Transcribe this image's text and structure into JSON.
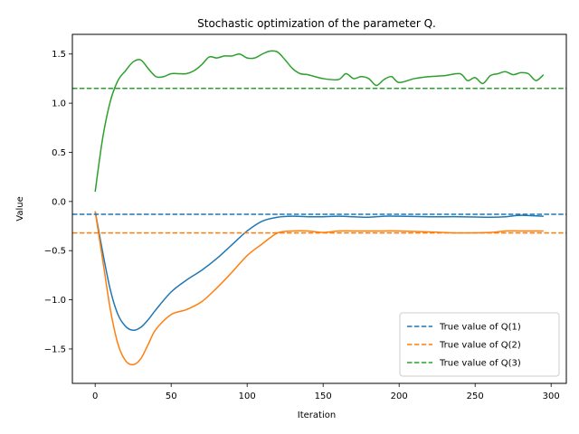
{
  "chart_data": {
    "type": "line",
    "title": "Stochastic optimization of the parameter Q.",
    "xlabel": "Iteration",
    "ylabel": "Value",
    "xlim": [
      -15,
      310
    ],
    "ylim": [
      -1.85,
      1.7
    ],
    "xticks": [
      0,
      50,
      100,
      150,
      200,
      250,
      300
    ],
    "yticks": [
      -1.5,
      -1.0,
      -0.5,
      0.0,
      0.5,
      1.0,
      1.5
    ],
    "grid": false,
    "legend_position": "lower-right",
    "series": [
      {
        "name": "",
        "color": "#1f77b4",
        "style": "solid",
        "x": [
          0,
          5,
          10,
          15,
          20,
          25,
          30,
          35,
          40,
          50,
          60,
          70,
          80,
          90,
          100,
          110,
          120,
          130,
          140,
          150,
          160,
          170,
          180,
          190,
          200,
          220,
          240,
          260,
          270,
          280,
          295
        ],
        "y": [
          -0.1,
          -0.52,
          -0.9,
          -1.15,
          -1.27,
          -1.31,
          -1.28,
          -1.2,
          -1.1,
          -0.92,
          -0.8,
          -0.7,
          -0.58,
          -0.44,
          -0.3,
          -0.2,
          -0.16,
          -0.15,
          -0.155,
          -0.155,
          -0.15,
          -0.155,
          -0.16,
          -0.15,
          -0.15,
          -0.155,
          -0.155,
          -0.16,
          -0.155,
          -0.14,
          -0.15
        ]
      },
      {
        "name": "",
        "color": "#ff7f0e",
        "style": "solid",
        "x": [
          0,
          5,
          10,
          15,
          20,
          25,
          30,
          35,
          40,
          50,
          60,
          70,
          80,
          90,
          100,
          110,
          120,
          130,
          140,
          150,
          160,
          170,
          180,
          190,
          200,
          220,
          240,
          260,
          270,
          280,
          295
        ],
        "y": [
          -0.1,
          -0.6,
          -1.1,
          -1.45,
          -1.62,
          -1.66,
          -1.6,
          -1.45,
          -1.3,
          -1.15,
          -1.1,
          -1.02,
          -0.88,
          -0.72,
          -0.55,
          -0.43,
          -0.32,
          -0.3,
          -0.3,
          -0.315,
          -0.3,
          -0.3,
          -0.3,
          -0.3,
          -0.3,
          -0.31,
          -0.32,
          -0.315,
          -0.3,
          -0.3,
          -0.3
        ]
      },
      {
        "name": "",
        "color": "#2ca02c",
        "style": "solid",
        "x": [
          0,
          5,
          10,
          15,
          20,
          25,
          30,
          35,
          40,
          45,
          50,
          55,
          60,
          65,
          70,
          75,
          80,
          85,
          90,
          95,
          100,
          105,
          110,
          115,
          120,
          125,
          130,
          135,
          140,
          150,
          160,
          165,
          170,
          175,
          180,
          185,
          190,
          195,
          200,
          210,
          220,
          230,
          240,
          245,
          250,
          255,
          260,
          265,
          270,
          275,
          280,
          285,
          290,
          295
        ],
        "y": [
          0.1,
          0.65,
          1.02,
          1.23,
          1.33,
          1.42,
          1.44,
          1.35,
          1.27,
          1.27,
          1.3,
          1.3,
          1.3,
          1.33,
          1.39,
          1.47,
          1.46,
          1.48,
          1.48,
          1.5,
          1.46,
          1.46,
          1.5,
          1.53,
          1.52,
          1.44,
          1.35,
          1.3,
          1.29,
          1.25,
          1.24,
          1.3,
          1.25,
          1.27,
          1.25,
          1.18,
          1.24,
          1.27,
          1.21,
          1.25,
          1.27,
          1.28,
          1.3,
          1.23,
          1.26,
          1.2,
          1.28,
          1.3,
          1.32,
          1.29,
          1.31,
          1.3,
          1.23,
          1.29
        ]
      },
      {
        "name": "True value of Q(1)",
        "color": "#1f77b4",
        "style": "dashed",
        "value": -0.13
      },
      {
        "name": "True value of Q(2)",
        "color": "#ff7f0e",
        "style": "dashed",
        "value": -0.32
      },
      {
        "name": "True value of Q(3)",
        "color": "#2ca02c",
        "style": "dashed",
        "value": 1.15
      }
    ]
  }
}
